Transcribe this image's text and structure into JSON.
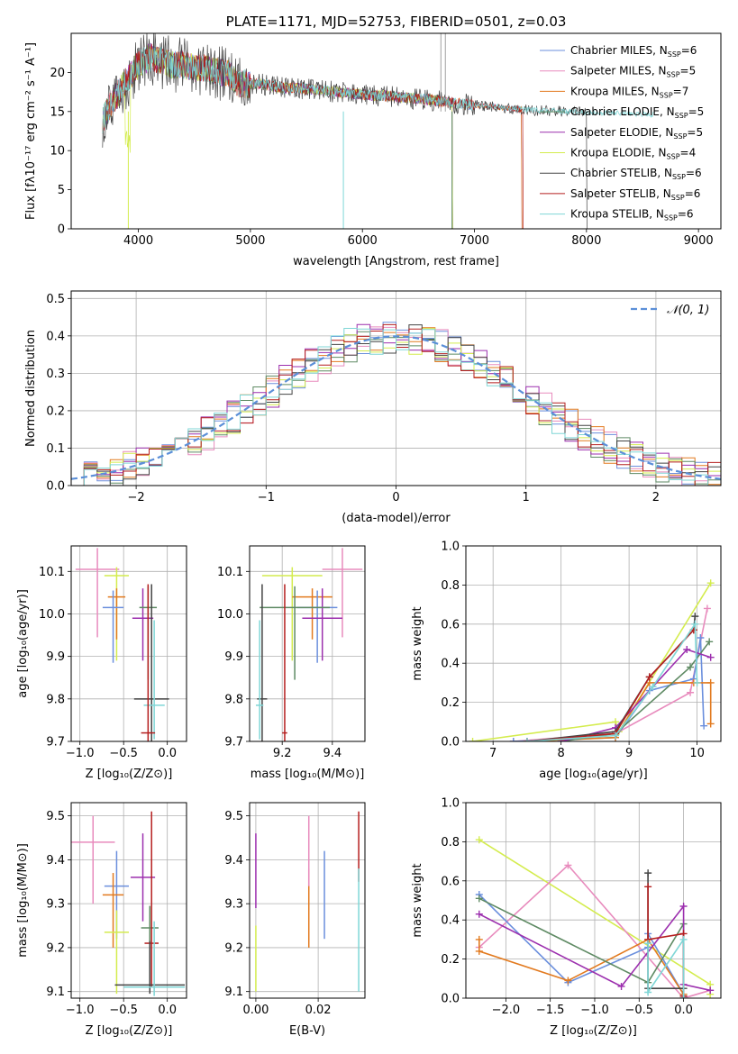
{
  "chart_data": [
    {
      "id": "spectrum",
      "type": "line",
      "title": "PLATE=1171, MJD=52753, FIBERID=0501, z=0.03",
      "xlabel": "wavelength [Angstrom, rest frame]",
      "ylabel": "Flux [fλ10⁻¹⁷ erg cm⁻² s⁻¹ A⁻¹]",
      "xlim": [
        3400,
        9200
      ],
      "ylim": [
        0,
        25
      ],
      "xticks": [
        4000,
        5000,
        6000,
        7000,
        8000,
        9000
      ],
      "yticks": [
        0,
        5,
        10,
        15,
        20
      ],
      "grid": false,
      "legend": "top-right",
      "continuum": {
        "x": [
          3680,
          3720,
          3800,
          3900,
          4000,
          4100,
          4200,
          4300,
          4400,
          4500,
          4600,
          4700,
          4800,
          4850,
          4900,
          5000,
          5100,
          5200,
          5300,
          5400,
          5500,
          5600,
          5700,
          5800,
          5900,
          6000,
          6100,
          6200,
          6300,
          6400,
          6500,
          6600,
          6700,
          6800,
          6900,
          7000,
          7100,
          7200,
          7300,
          7400,
          7500,
          7600,
          7700,
          7800,
          7900,
          8000,
          8100,
          8200,
          8300,
          8400,
          8500,
          8600,
          8700,
          8800,
          8900,
          9000,
          9100
        ],
        "y": [
          14,
          15,
          17,
          19,
          21,
          22,
          21.5,
          21,
          21,
          20.5,
          20.5,
          20,
          20,
          19,
          18.5,
          18.5,
          18.5,
          18.3,
          18,
          18,
          17.9,
          17.8,
          17.6,
          17.5,
          17.3,
          17.2,
          17,
          17,
          16.9,
          16.8,
          16.6,
          16.5,
          16.3,
          16.1,
          16,
          15.8,
          15.7,
          15.6,
          15.4,
          15.3,
          15.2,
          15.1,
          15.1,
          15,
          15,
          14.9,
          14.9,
          14.8,
          14.8,
          14.7,
          14.7,
          14.6,
          14.6,
          14.5,
          14.4,
          14.3,
          14.2
        ]
      },
      "series": [
        {
          "name": "Chabrier MILES, N",
          "sub": "SSP",
          "n": "6",
          "color": "#6b8fdd",
          "xmax": 7420
        },
        {
          "name": "Salpeter MILES, N",
          "sub": "SSP",
          "n": "5",
          "color": "#e88bbd",
          "xmax": 7420
        },
        {
          "name": "Kroupa MILES, N",
          "sub": "SSP",
          "n": "7",
          "color": "#e27a1f",
          "xmax": 7420
        },
        {
          "name": "Chabrier ELODIE, N",
          "sub": "SSP",
          "n": "5",
          "color": "#5e8a63",
          "xmax": 6800
        },
        {
          "name": "Salpeter ELODIE, N",
          "sub": "SSP",
          "n": "5",
          "color": "#9c2fae",
          "xmax": 6800
        },
        {
          "name": "Kroupa ELODIE, N",
          "sub": "SSP",
          "n": "4",
          "color": "#d4ec4e",
          "xmax": 6800
        },
        {
          "name": "Chabrier STELIB, N",
          "sub": "SSP",
          "n": "6",
          "color": "#444444",
          "xmax": 8000
        },
        {
          "name": "Salpeter STELIB, N",
          "sub": "SSP",
          "n": "6",
          "color": "#b51f1f",
          "xmax": 7430
        },
        {
          "name": "Kroupa STELIB, N",
          "sub": "SSP",
          "n": "6",
          "color": "#7fd6d6",
          "xmax": 8600
        }
      ]
    },
    {
      "id": "residuals",
      "type": "histogram",
      "xlabel": "(data-model)/error",
      "ylabel": "Normed distribution",
      "xlim": [
        -2.5,
        2.5
      ],
      "ylim": [
        0,
        0.52
      ],
      "xticks": [
        -2,
        -1,
        0,
        1,
        2
      ],
      "yticks": [
        0.0,
        0.1,
        0.2,
        0.3,
        0.4,
        0.5
      ],
      "grid": true,
      "legend": "top-right",
      "model_label": "𝒩(0, 1)",
      "bin_width": 0.1,
      "bin_start": -2.5,
      "model_color": "#5b8fd8"
    },
    {
      "id": "age-vs-Z",
      "type": "scatter-errorbar",
      "xlabel": "Z [log₁₀(Z/Z⊙)]",
      "ylabel": "age  [log₁₀(age/yr)]",
      "xlim": [
        -1.1,
        0.22
      ],
      "ylim": [
        9.7,
        10.16
      ],
      "xticks": [
        -1.0,
        -0.5,
        0.0
      ],
      "yticks": [
        9.7,
        9.8,
        9.9,
        10.0,
        10.1
      ],
      "grid": true,
      "points": [
        {
          "c": "#e88bbd",
          "x": -0.8,
          "y": 10.105,
          "xe": 0.25,
          "ye": [
            0.16,
            0.05
          ]
        },
        {
          "c": "#d4ec4e",
          "x": -0.58,
          "y": 10.09,
          "xe": 0.14,
          "ye": [
            0.2,
            0.02
          ]
        },
        {
          "c": "#e27a1f",
          "x": -0.58,
          "y": 10.04,
          "xe": 0.1,
          "ye": [
            0.1,
            0.02
          ]
        },
        {
          "c": "#6b8fdd",
          "x": -0.62,
          "y": 10.015,
          "xe": 0.12,
          "ye": [
            0.13,
            0.04
          ]
        },
        {
          "c": "#9c2fae",
          "x": -0.28,
          "y": 9.99,
          "xe": 0.12,
          "ye": [
            0.1,
            0.07
          ]
        },
        {
          "c": "#5e8a63",
          "x": -0.22,
          "y": 10.015,
          "xe": 0.1,
          "ye": [
            0.17,
            0.05
          ]
        },
        {
          "c": "#444444",
          "x": -0.18,
          "y": 9.8,
          "xe": 0.2,
          "ye": [
            0.1,
            0.27
          ]
        },
        {
          "c": "#7fd6d6",
          "x": -0.15,
          "y": 9.785,
          "xe": 0.12,
          "ye": [
            0.08,
            0.2
          ]
        },
        {
          "c": "#b51f1f",
          "x": -0.22,
          "y": 9.72,
          "xe": 0.08,
          "ye": [
            0.02,
            0.35
          ]
        }
      ]
    },
    {
      "id": "age-vs-mass",
      "type": "scatter-errorbar",
      "xlabel": "mass [log₁₀(M/M⊙)]",
      "ylabel": "",
      "xlim": [
        9.07,
        9.53
      ],
      "ylim": [
        9.7,
        10.16
      ],
      "xticks": [
        9.2,
        9.4
      ],
      "yticks": [
        9.7,
        9.8,
        9.9,
        10.0,
        10.1
      ],
      "grid": true,
      "points": [
        {
          "c": "#e88bbd",
          "x": 9.44,
          "y": 10.105,
          "xe": 0.08,
          "ye": [
            0.16,
            0.05
          ]
        },
        {
          "c": "#d4ec4e",
          "x": 9.24,
          "y": 10.09,
          "xe": 0.12,
          "ye": [
            0.2,
            0.02
          ]
        },
        {
          "c": "#e27a1f",
          "x": 9.32,
          "y": 10.04,
          "xe": 0.08,
          "ye": [
            0.1,
            0.02
          ]
        },
        {
          "c": "#6b8fdd",
          "x": 9.34,
          "y": 10.015,
          "xe": 0.08,
          "ye": [
            0.13,
            0.04
          ]
        },
        {
          "c": "#9c2fae",
          "x": 9.36,
          "y": 9.99,
          "xe": 0.08,
          "ye": [
            0.1,
            0.07
          ]
        },
        {
          "c": "#5e8a63",
          "x": 9.25,
          "y": 10.015,
          "xe": 0.14,
          "ye": [
            0.17,
            0.05
          ]
        },
        {
          "c": "#444444",
          "x": 9.12,
          "y": 9.8,
          "xe": 0.02,
          "ye": [
            0.1,
            0.27
          ]
        },
        {
          "c": "#7fd6d6",
          "x": 9.11,
          "y": 9.785,
          "xe": 0.015,
          "ye": [
            0.08,
            0.2
          ]
        },
        {
          "c": "#b51f1f",
          "x": 9.21,
          "y": 9.72,
          "xe": 0.01,
          "ye": [
            0.02,
            0.35
          ]
        }
      ]
    },
    {
      "id": "weight-vs-age",
      "type": "line",
      "xlabel": "age  [log₁₀(age/yr)]",
      "ylabel": "mass weight",
      "xlim": [
        6.6,
        10.35
      ],
      "ylim": [
        0,
        1
      ],
      "xticks": [
        7,
        8,
        9,
        10
      ],
      "yticks": [
        0.0,
        0.2,
        0.4,
        0.6,
        0.8,
        1.0
      ],
      "grid": true,
      "series": [
        {
          "c": "#d4ec4e",
          "pts": [
            [
              6.7,
              0
            ],
            [
              8.8,
              0.1
            ],
            [
              8.85,
              0.05
            ],
            [
              10.2,
              0.81
            ]
          ]
        },
        {
          "c": "#e88bbd",
          "pts": [
            [
              7.3,
              0
            ],
            [
              8.8,
              0.04
            ],
            [
              9.9,
              0.25
            ],
            [
              10.15,
              0.68
            ]
          ]
        },
        {
          "c": "#6b8fdd",
          "pts": [
            [
              7.3,
              0
            ],
            [
              8.8,
              0.02
            ],
            [
              9.3,
              0.26
            ],
            [
              9.95,
              0.32
            ],
            [
              10.05,
              0.53
            ],
            [
              10.1,
              0.08
            ]
          ]
        },
        {
          "c": "#e27a1f",
          "pts": [
            [
              7.5,
              0
            ],
            [
              8.8,
              0.02
            ],
            [
              9.3,
              0.3
            ],
            [
              9.95,
              0.3
            ],
            [
              10.2,
              0.3
            ],
            [
              10.2,
              0.09
            ]
          ]
        },
        {
          "c": "#5e8a63",
          "pts": [
            [
              8.0,
              0
            ],
            [
              8.8,
              0.04
            ],
            [
              9.9,
              0.38
            ],
            [
              10.18,
              0.51
            ]
          ]
        },
        {
          "c": "#9c2fae",
          "pts": [
            [
              8.0,
              0
            ],
            [
              8.8,
              0.07
            ],
            [
              9.85,
              0.47
            ],
            [
              10.2,
              0.43
            ]
          ]
        },
        {
          "c": "#444444",
          "pts": [
            [
              7.5,
              0
            ],
            [
              8.8,
              0.05
            ],
            [
              9.3,
              0.33
            ],
            [
              9.95,
              0.57
            ],
            [
              9.97,
              0.64
            ]
          ]
        },
        {
          "c": "#b51f1f",
          "pts": [
            [
              7.5,
              0
            ],
            [
              8.8,
              0.04
            ],
            [
              9.3,
              0.33
            ],
            [
              9.95,
              0.57
            ]
          ]
        },
        {
          "c": "#7fd6d6",
          "pts": [
            [
              7.5,
              0
            ],
            [
              8.8,
              0.03
            ],
            [
              9.35,
              0.28
            ],
            [
              9.97,
              0.6
            ],
            [
              10.0,
              0.3
            ]
          ]
        }
      ]
    },
    {
      "id": "mass-vs-Z",
      "type": "scatter-errorbar",
      "xlabel": "Z [log₁₀(Z/Z⊙)]",
      "ylabel": "mass [log₁₀(M/M⊙)]",
      "xlim": [
        -1.1,
        0.22
      ],
      "ylim": [
        9.085,
        9.53
      ],
      "xticks": [
        -1.0,
        -0.5,
        0.0
      ],
      "yticks": [
        9.1,
        9.2,
        9.3,
        9.4,
        9.5
      ],
      "grid": true,
      "points": [
        {
          "c": "#e88bbd",
          "x": -0.85,
          "y": 9.44,
          "xe": 0.25,
          "ye": [
            0.14,
            0.06
          ]
        },
        {
          "c": "#6b8fdd",
          "x": -0.58,
          "y": 9.34,
          "xe": 0.14,
          "ye": [
            0.12,
            0.08
          ]
        },
        {
          "c": "#e27a1f",
          "x": -0.62,
          "y": 9.32,
          "xe": 0.12,
          "ye": [
            0.12,
            0.05
          ]
        },
        {
          "c": "#9c2fae",
          "x": -0.28,
          "y": 9.36,
          "xe": 0.14,
          "ye": [
            0.1,
            0.1
          ]
        },
        {
          "c": "#d4ec4e",
          "x": -0.58,
          "y": 9.235,
          "xe": 0.14,
          "ye": [
            0.14,
            0.05
          ]
        },
        {
          "c": "#5e8a63",
          "x": -0.2,
          "y": 9.245,
          "xe": 0.1,
          "ye": [
            0.14,
            0.05
          ]
        },
        {
          "c": "#b51f1f",
          "x": -0.18,
          "y": 9.21,
          "xe": 0.08,
          "ye": [
            0.1,
            0.3
          ]
        },
        {
          "c": "#444444",
          "x": -0.2,
          "y": 9.115,
          "xe": 0.4,
          "ye": [
            0.02,
            0.1
          ]
        },
        {
          "c": "#7fd6d6",
          "x": -0.15,
          "y": 9.11,
          "xe": 0.35,
          "ye": [
            0.02,
            0.15
          ]
        }
      ]
    },
    {
      "id": "mass-vs-EBV",
      "type": "scatter-errorbar",
      "xlabel": "E(B-V)",
      "ylabel": "",
      "xlim": [
        -0.002,
        0.035
      ],
      "ylim": [
        9.085,
        9.53
      ],
      "xticks": [
        0.0,
        0.02
      ],
      "yticks": [
        9.1,
        9.2,
        9.3,
        9.4,
        9.5
      ],
      "grid": true,
      "points": [
        {
          "c": "#9c2fae",
          "x": 0.0,
          "y": 9.36,
          "xe": 0,
          "ye": [
            0.07,
            0.1
          ]
        },
        {
          "c": "#d4ec4e",
          "x": 0.0,
          "y": 9.2,
          "xe": 0,
          "ye": [
            0.1,
            0.05
          ]
        },
        {
          "c": "#e27a1f",
          "x": 0.017,
          "y": 9.29,
          "xe": 0,
          "ye": [
            0.09,
            0.09
          ]
        },
        {
          "c": "#e88bbd",
          "x": 0.017,
          "y": 9.44,
          "xe": 0,
          "ye": [
            0.1,
            0.06
          ]
        },
        {
          "c": "#6b8fdd",
          "x": 0.022,
          "y": 9.32,
          "xe": 0,
          "ye": [
            0.1,
            0.1
          ]
        },
        {
          "c": "#b51f1f",
          "x": 0.033,
          "y": 9.45,
          "xe": 0,
          "ye": [
            0.1,
            0.06
          ]
        },
        {
          "c": "#7fd6d6",
          "x": 0.033,
          "y": 9.24,
          "xe": 0,
          "ye": [
            0.14,
            0.14
          ]
        }
      ]
    },
    {
      "id": "weight-vs-Z",
      "type": "line",
      "xlabel": "Z [log₁₀(Z/Z⊙)]",
      "ylabel": "mass weight",
      "xlim": [
        -2.45,
        0.42
      ],
      "ylim": [
        0,
        1
      ],
      "xticks": [
        -2.0,
        -1.5,
        -1.0,
        -0.5,
        0.0
      ],
      "yticks": [
        0.0,
        0.2,
        0.4,
        0.6,
        0.8,
        1.0
      ],
      "grid": true,
      "series": [
        {
          "c": "#d4ec4e",
          "pts": [
            [
              -2.3,
              0.81
            ],
            [
              0.3,
              0.07
            ],
            [
              0.3,
              0.02
            ]
          ]
        },
        {
          "c": "#e88bbd",
          "pts": [
            [
              -2.3,
              0.26
            ],
            [
              -1.3,
              0.68
            ],
            [
              0.0,
              0.0
            ],
            [
              0.3,
              0.04
            ]
          ]
        },
        {
          "c": "#6b8fdd",
          "pts": [
            [
              -2.3,
              0.53
            ],
            [
              -1.3,
              0.08
            ],
            [
              -0.4,
              0.26
            ],
            [
              -0.4,
              0.33
            ],
            [
              0.0,
              0.02
            ]
          ]
        },
        {
          "c": "#e27a1f",
          "pts": [
            [
              -2.3,
              0.3
            ],
            [
              -2.3,
              0.24
            ],
            [
              -1.3,
              0.09
            ],
            [
              -0.4,
              0.3
            ],
            [
              0.0,
              0.02
            ]
          ]
        },
        {
          "c": "#5e8a63",
          "pts": [
            [
              -2.3,
              0.51
            ],
            [
              -0.4,
              0.08
            ],
            [
              0.0,
              0.38
            ],
            [
              0.0,
              0.01
            ]
          ]
        },
        {
          "c": "#9c2fae",
          "pts": [
            [
              -2.3,
              0.43
            ],
            [
              -0.7,
              0.06
            ],
            [
              0.0,
              0.47
            ],
            [
              0.0,
              0.07
            ],
            [
              0.3,
              0.04
            ]
          ]
        },
        {
          "c": "#444444",
          "pts": [
            [
              -0.4,
              0.64
            ],
            [
              -0.4,
              0.05
            ],
            [
              0.0,
              0.05
            ]
          ]
        },
        {
          "c": "#b51f1f",
          "pts": [
            [
              -0.4,
              0.57
            ],
            [
              -0.4,
              0.3
            ],
            [
              0.0,
              0.33
            ],
            [
              0.0,
              0.01
            ]
          ]
        },
        {
          "c": "#7fd6d6",
          "pts": [
            [
              -0.4,
              0.28
            ],
            [
              -0.4,
              0.03
            ],
            [
              0.0,
              0.3
            ],
            [
              0.0,
              0.0
            ]
          ]
        }
      ]
    }
  ]
}
